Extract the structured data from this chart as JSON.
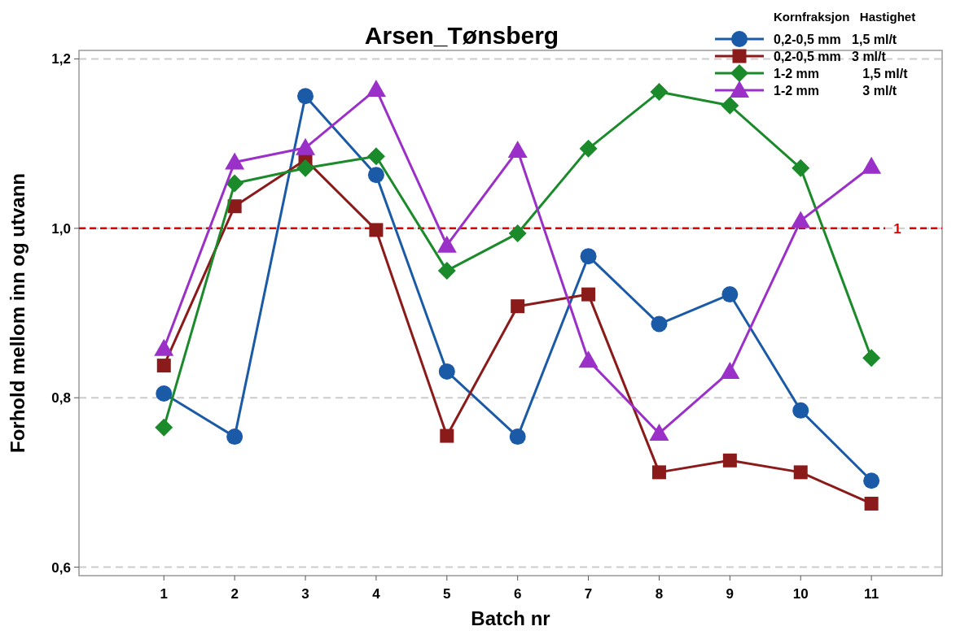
{
  "chart_data": {
    "type": "line",
    "title": "Arsen_Tønsberg",
    "xlabel": "Batch nr",
    "ylabel": "Forhold mellom inn og utvann",
    "legend_title": "Kornfraksjon   Hastighet",
    "x": [
      1,
      2,
      3,
      4,
      5,
      6,
      7,
      8,
      9,
      10,
      11
    ],
    "series": [
      {
        "name": "0,2-0,5 mm   1,5 ml/t",
        "color": "#1a5aa6",
        "marker": "circle",
        "values": [
          0.805,
          0.754,
          1.156,
          1.063,
          0.831,
          0.754,
          0.967,
          0.887,
          0.922,
          0.785,
          0.702
        ]
      },
      {
        "name": "0,2-0,5 mm   3 ml/t",
        "color": "#8b1a1a",
        "marker": "square",
        "values": [
          0.838,
          1.026,
          1.081,
          0.998,
          0.755,
          0.908,
          0.922,
          0.712,
          0.726,
          0.712,
          0.675
        ]
      },
      {
        "name": "1-2 mm            1,5 ml/t",
        "color": "#1a8a2a",
        "marker": "diamond",
        "values": [
          0.765,
          1.053,
          1.071,
          1.085,
          0.95,
          0.994,
          1.094,
          1.161,
          1.145,
          1.071,
          0.847
        ]
      },
      {
        "name": "1-2 mm            3 ml/t",
        "color": "#9b30c8",
        "marker": "triangle",
        "values": [
          0.858,
          1.078,
          1.095,
          1.164,
          0.98,
          1.092,
          0.844,
          0.758,
          0.831,
          1.009,
          1.073
        ]
      }
    ],
    "xlim": [
      -0.2,
      12
    ],
    "xticks": [
      1,
      2,
      3,
      4,
      5,
      6,
      7,
      8,
      9,
      10,
      11
    ],
    "ylim": [
      0.59,
      1.21
    ],
    "yticks": [
      {
        "value": 0.6,
        "label": "0,6"
      },
      {
        "value": 0.8,
        "label": "0,8"
      },
      {
        "value": 1.0,
        "label": "1,0"
      },
      {
        "value": 1.2,
        "label": "1,2"
      }
    ],
    "ref_lines": [
      {
        "axis": "y",
        "value": 1,
        "label": "1",
        "color": "#e00000",
        "line_style": "dashed"
      }
    ],
    "grid": "y",
    "legend": "top right",
    "line_style": "solid"
  }
}
